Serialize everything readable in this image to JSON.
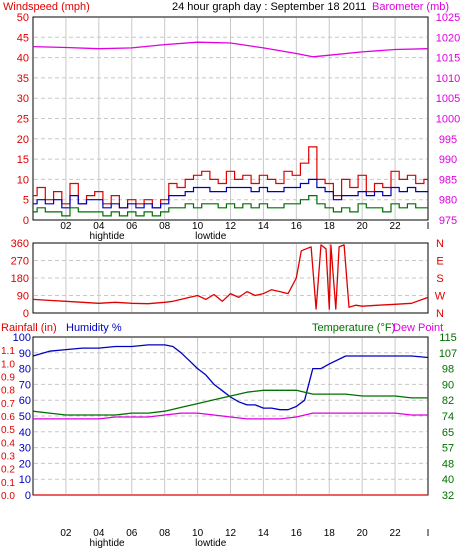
{
  "header": {
    "title": "24 hour graph day : September 18 2011",
    "left_label": "Windspeed (mph)",
    "right_label": "Barometer (mb)"
  },
  "colors": {
    "red": "#e00000",
    "blue": "#0000c0",
    "green": "#007000",
    "magenta": "#e000e0",
    "grid": "#c8c8c8",
    "frame": "#000000"
  },
  "x_axis": {
    "ticks": [
      "02",
      "04",
      "06",
      "08",
      "10",
      "12",
      "14",
      "16",
      "18",
      "20",
      "22",
      "I"
    ],
    "tide_labels": [
      {
        "text": "hightide",
        "hour": 4.5
      },
      {
        "text": "lowtide",
        "hour": 10.8
      }
    ]
  },
  "chart_data": [
    {
      "type": "line",
      "title": "24 hour graph day : September 18 2011",
      "x_unit": "hour",
      "xlim": [
        0,
        24
      ],
      "ylim_left": [
        0,
        50
      ],
      "ylim_right": [
        975,
        1025
      ],
      "left_ticks": [
        "0",
        "5",
        "10",
        "15",
        "20",
        "25",
        "30",
        "35",
        "40",
        "45",
        "50"
      ],
      "right_ticks": [
        "975",
        "980",
        "985",
        "990",
        "995",
        "1000",
        "1005",
        "1010",
        "1015",
        "1020",
        "1025"
      ],
      "ylabel_left": "Windspeed (mph)",
      "ylabel_right": "Barometer (mb)",
      "grid": true,
      "series": [
        {
          "color_key": "red",
          "axis": "left",
          "x": [
            0,
            0.5,
            1,
            1.5,
            2,
            2.5,
            3,
            3.5,
            4,
            4.5,
            5,
            5.5,
            6,
            6.5,
            7,
            7.5,
            8,
            8.5,
            9,
            9.5,
            10,
            10.5,
            11,
            11.5,
            12,
            12.5,
            13,
            13.5,
            14,
            14.5,
            15,
            15.5,
            16,
            16.5,
            17,
            17.5,
            18,
            18.5,
            19,
            19.5,
            20,
            20.5,
            21,
            21.5,
            22,
            22.5,
            23,
            23.5,
            24
          ],
          "y": [
            6,
            8,
            5,
            7,
            4,
            9,
            4,
            6,
            7,
            4,
            6,
            3,
            5,
            4,
            5,
            3,
            5,
            9,
            8,
            10,
            11,
            12,
            10,
            9,
            12,
            10,
            11,
            9,
            11,
            10,
            9,
            12,
            11,
            14,
            18,
            10,
            9,
            6,
            10,
            8,
            11,
            7,
            9,
            8,
            12,
            10,
            11,
            9,
            10
          ]
        },
        {
          "color_key": "blue",
          "axis": "left",
          "x": [
            0,
            0.5,
            1,
            1.5,
            2,
            2.5,
            3,
            3.5,
            4,
            4.5,
            5,
            5.5,
            6,
            6.5,
            7,
            7.5,
            8,
            8.5,
            9,
            9.5,
            10,
            10.5,
            11,
            11.5,
            12,
            12.5,
            13,
            13.5,
            14,
            14.5,
            15,
            15.5,
            16,
            16.5,
            17,
            17.5,
            18,
            18.5,
            19,
            19.5,
            20,
            20.5,
            21,
            21.5,
            22,
            22.5,
            23,
            23.5,
            24
          ],
          "y": [
            4,
            5,
            4,
            5,
            3,
            6,
            4,
            5,
            5,
            3,
            4,
            3,
            4,
            3,
            4,
            3,
            4,
            6,
            6,
            7,
            8,
            8,
            7,
            7,
            8,
            8,
            8,
            7,
            8,
            7,
            7,
            8,
            8,
            9,
            10,
            8,
            7,
            5,
            6,
            6,
            7,
            6,
            7,
            6,
            8,
            7,
            8,
            7,
            7
          ]
        },
        {
          "color_key": "green",
          "axis": "left",
          "x": [
            0,
            0.5,
            1,
            1.5,
            2,
            2.5,
            3,
            3.5,
            4,
            4.5,
            5,
            5.5,
            6,
            6.5,
            7,
            7.5,
            8,
            8.5,
            9,
            9.5,
            10,
            10.5,
            11,
            11.5,
            12,
            12.5,
            13,
            13.5,
            14,
            14.5,
            15,
            15.5,
            16,
            16.5,
            17,
            17.5,
            18,
            18.5,
            19,
            19.5,
            20,
            20.5,
            21,
            21.5,
            22,
            22.5,
            23,
            23.5,
            24
          ],
          "y": [
            2,
            3,
            2,
            2,
            1,
            3,
            2,
            2,
            2,
            1,
            2,
            1,
            2,
            1,
            2,
            1,
            2,
            3,
            3,
            4,
            3,
            4,
            4,
            3,
            4,
            3,
            4,
            3,
            4,
            3,
            3,
            4,
            4,
            5,
            6,
            4,
            3,
            2,
            3,
            2,
            4,
            3,
            3,
            2,
            4,
            3,
            4,
            3,
            3
          ]
        },
        {
          "color_key": "magenta",
          "axis": "right",
          "x": [
            0,
            2,
            4,
            6,
            8,
            10,
            12,
            14,
            16,
            17,
            18,
            20,
            22,
            24
          ],
          "y": [
            1017.7,
            1017.5,
            1017.2,
            1017.4,
            1018.2,
            1018.8,
            1018.6,
            1017.4,
            1016.0,
            1015.2,
            1015.6,
            1016.4,
            1017.0,
            1017.2
          ]
        }
      ]
    },
    {
      "type": "scatter",
      "x_unit": "hour",
      "xlim": [
        0,
        24
      ],
      "ylim_left": [
        0,
        360
      ],
      "left_ticks": [
        "0",
        "90",
        "180",
        "270",
        "360"
      ],
      "right_ticks": [
        "N",
        "W",
        "S",
        "E",
        "N"
      ],
      "grid": true,
      "series": [
        {
          "color_key": "red",
          "axis": "left",
          "x": [
            0,
            1,
            2,
            3,
            4,
            5,
            6,
            7,
            8,
            8.5,
            9,
            9.5,
            10,
            10.5,
            11,
            11.5,
            12,
            12.5,
            13,
            13.5,
            14,
            14.5,
            15,
            15.5,
            16,
            16.3,
            16.6,
            16.9,
            17.2,
            17.5,
            17.8,
            18,
            18.1,
            18.4,
            18.6,
            18.9,
            19.2,
            19.6,
            20,
            21,
            22,
            23,
            24
          ],
          "y": [
            70,
            65,
            60,
            55,
            50,
            55,
            50,
            48,
            55,
            60,
            70,
            80,
            90,
            70,
            95,
            60,
            100,
            80,
            110,
            90,
            100,
            120,
            110,
            100,
            180,
            320,
            330,
            340,
            20,
            350,
            330,
            20,
            350,
            20,
            340,
            350,
            30,
            40,
            35,
            40,
            45,
            50,
            80
          ]
        }
      ]
    },
    {
      "type": "line",
      "x_unit": "hour",
      "xlim": [
        0,
        24
      ],
      "ylim_rain": [
        0,
        1.2
      ],
      "ylim_humidity": [
        0,
        100
      ],
      "ylim_temperature": [
        32,
        115
      ],
      "rain_ticks": [
        "0.0",
        "0.1",
        "0.2",
        "0.3",
        "0.4",
        "0.5",
        "0.6",
        "0.7",
        "0.8",
        "0.9",
        "1.0",
        "1.1"
      ],
      "humidity_ticks": [
        "0",
        "10",
        "20",
        "30",
        "40",
        "50",
        "60",
        "70",
        "80",
        "90",
        "100"
      ],
      "temp_ticks": [
        "32",
        "40",
        "48",
        "57",
        "65",
        "74",
        "82",
        "90",
        "98",
        "107",
        "115"
      ],
      "ylabel_rain": "Rainfall (in)",
      "ylabel_humidity": "Humidity %",
      "ylabel_temp": "Temperature (°F)",
      "ylabel_dew": "Dew Point",
      "grid": true,
      "series": [
        {
          "color_key": "blue",
          "axis": "humidity",
          "x": [
            0,
            1,
            2,
            3,
            4,
            5,
            6,
            7,
            8,
            8.5,
            9,
            9.5,
            10,
            10.5,
            11,
            11.5,
            12,
            12.5,
            13,
            13.5,
            14,
            14.5,
            15,
            15.5,
            16,
            16.5,
            17,
            17.5,
            18,
            19,
            20,
            21,
            22,
            23,
            24
          ],
          "y": [
            88,
            91,
            92,
            93,
            93,
            94,
            94,
            95,
            95,
            94,
            90,
            85,
            80,
            76,
            70,
            66,
            62,
            59,
            57,
            57,
            55,
            55,
            54,
            54,
            56,
            60,
            80,
            80,
            83,
            88,
            88,
            88,
            88,
            88,
            87
          ]
        },
        {
          "color_key": "green",
          "axis": "temperature",
          "x": [
            0,
            1,
            2,
            3,
            4,
            5,
            6,
            7,
            8,
            9,
            10,
            11,
            12,
            13,
            14,
            15,
            16,
            17,
            18,
            19,
            20,
            21,
            22,
            23,
            24
          ],
          "y": [
            76,
            75,
            74,
            74,
            74,
            74,
            75,
            75,
            76,
            78,
            80,
            82,
            84,
            86,
            87,
            87,
            87,
            85,
            85,
            85,
            84,
            84,
            84,
            83,
            83
          ]
        },
        {
          "color_key": "magenta",
          "axis": "temperature",
          "x": [
            0,
            1,
            2,
            3,
            4,
            5,
            6,
            7,
            8,
            9,
            10,
            11,
            12,
            13,
            14,
            15,
            16,
            17,
            18,
            19,
            20,
            21,
            22,
            23,
            24
          ],
          "y": [
            72,
            72,
            72,
            72,
            72,
            73,
            73,
            73,
            74,
            75,
            75,
            74,
            73,
            72,
            72,
            72,
            73,
            75,
            75,
            75,
            75,
            75,
            75,
            74,
            74
          ]
        },
        {
          "color_key": "red",
          "axis": "rain",
          "x": [
            0,
            24
          ],
          "y": [
            0,
            0
          ]
        }
      ]
    }
  ]
}
